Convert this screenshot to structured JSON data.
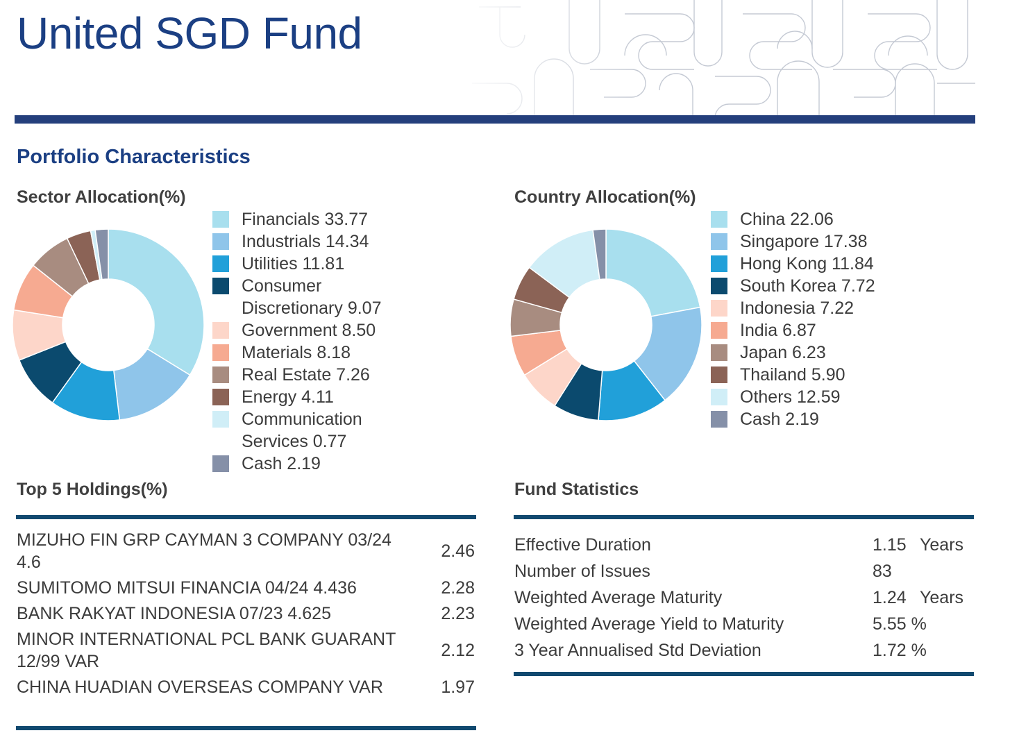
{
  "header": {
    "title": "United SGD Fund"
  },
  "section_title": "Portfolio Characteristics",
  "sector": {
    "heading": "Sector Allocation(%)",
    "items": [
      {
        "label": "Financials 33.77",
        "color": "#a8dfee"
      },
      {
        "label": "Industrials 14.34",
        "color": "#8fc5ea"
      },
      {
        "label": "Utilities 11.81",
        "color": "#21a0d9"
      },
      {
        "label": "Consumer Discretionary 9.07",
        "color": "#0b4a6e"
      },
      {
        "label": "Government 8.50",
        "color": "#fdd6c9"
      },
      {
        "label": "Materials 8.18",
        "color": "#f6aa91"
      },
      {
        "label": "Real Estate 7.26",
        "color": "#a88c80"
      },
      {
        "label": "Energy 4.11",
        "color": "#8b6356"
      },
      {
        "label": "Communication Services 0.77",
        "color": "#d0eef7"
      },
      {
        "label": "Cash 2.19",
        "color": "#8590a8"
      }
    ]
  },
  "country": {
    "heading": "Country Allocation(%)",
    "items": [
      {
        "label": "China 22.06",
        "color": "#a8dfee"
      },
      {
        "label": "Singapore 17.38",
        "color": "#8fc5ea"
      },
      {
        "label": "Hong Kong 11.84",
        "color": "#21a0d9"
      },
      {
        "label": "South Korea 7.72",
        "color": "#0b4a6e"
      },
      {
        "label": "Indonesia 7.22",
        "color": "#fdd6c9"
      },
      {
        "label": "India 6.87",
        "color": "#f6aa91"
      },
      {
        "label": "Japan 6.23",
        "color": "#a88c80"
      },
      {
        "label": "Thailand 5.90",
        "color": "#8b6356"
      },
      {
        "label": "Others 12.59",
        "color": "#d0eef7"
      },
      {
        "label": "Cash 2.19",
        "color": "#8590a8"
      }
    ]
  },
  "chart_data": [
    {
      "type": "pie",
      "title": "Sector Allocation(%)",
      "categories": [
        "Financials",
        "Industrials",
        "Utilities",
        "Consumer Discretionary",
        "Government",
        "Materials",
        "Real Estate",
        "Energy",
        "Communication Services",
        "Cash"
      ],
      "values": [
        33.77,
        14.34,
        11.81,
        9.07,
        8.5,
        8.18,
        7.26,
        4.11,
        0.77,
        2.19
      ],
      "colors": [
        "#a8dfee",
        "#8fc5ea",
        "#21a0d9",
        "#0b4a6e",
        "#fdd6c9",
        "#f6aa91",
        "#a88c80",
        "#8b6356",
        "#d0eef7",
        "#8590a8"
      ],
      "legend": "right"
    },
    {
      "type": "pie",
      "title": "Country Allocation(%)",
      "categories": [
        "China",
        "Singapore",
        "Hong Kong",
        "South Korea",
        "Indonesia",
        "India",
        "Japan",
        "Thailand",
        "Others",
        "Cash"
      ],
      "values": [
        22.06,
        17.38,
        11.84,
        7.72,
        7.22,
        6.87,
        6.23,
        5.9,
        12.59,
        2.19
      ],
      "colors": [
        "#a8dfee",
        "#8fc5ea",
        "#21a0d9",
        "#0b4a6e",
        "#fdd6c9",
        "#f6aa91",
        "#a88c80",
        "#8b6356",
        "#d0eef7",
        "#8590a8"
      ],
      "legend": "right"
    }
  ],
  "holdings": {
    "heading": "Top 5 Holdings(%)",
    "rows": [
      {
        "name": "MIZUHO FIN GRP CAYMAN 3 COMPANY 03/24 4.6",
        "value": "2.46"
      },
      {
        "name": "SUMITOMO MITSUI FINANCIA 04/24 4.436",
        "value": "2.28"
      },
      {
        "name": "BANK RAKYAT INDONESIA 07/23 4.625",
        "value": "2.23"
      },
      {
        "name": "MINOR INTERNATIONAL PCL BANK GUARANT 12/99 VAR",
        "value": "2.12"
      },
      {
        "name": "CHINA HUADIAN OVERSEAS COMPANY VAR",
        "value": "1.97"
      }
    ]
  },
  "stats": {
    "heading": "Fund Statistics",
    "rows": [
      {
        "label": "Effective Duration",
        "value": "1.15",
        "unit": "Years"
      },
      {
        "label": "Number of Issues",
        "value": "83",
        "unit": ""
      },
      {
        "label": "Weighted Average Maturity",
        "value": "1.24",
        "unit": "Years"
      },
      {
        "label": "Weighted Average Yield to Maturity",
        "value": "5.55 %",
        "unit": ""
      },
      {
        "label": "3 Year Annualised Std Deviation",
        "value": "1.72 %",
        "unit": ""
      }
    ]
  }
}
